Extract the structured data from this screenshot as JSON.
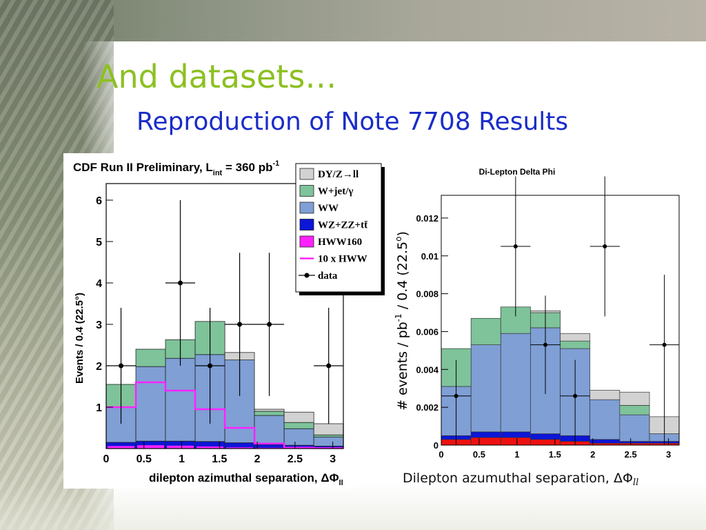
{
  "slide": {
    "title": "And datasets…",
    "subtitle": "Reproduction of Note 7708 Results"
  },
  "colors": {
    "title": "#8cc021",
    "subtitle": "#1a2cc8",
    "dy": "#d2d2d2",
    "wjet": "#7ec39a",
    "ww": "#7f9fd5",
    "wz": "#0c16d8",
    "hww": "#ff22ff",
    "hww_red": "#ee1111"
  },
  "chart_data": [
    {
      "type": "bar",
      "stacked": true,
      "title": "CDF Run II Preliminary, L_int = 360 pb^-1",
      "title_parts": {
        "main": "CDF Run II Preliminary, L",
        "sub": "int",
        "rest": " = 360 pb",
        "sup": "-1"
      },
      "xlabel": "dilepton azimuthal separation, ΔΦ",
      "xlabel_sub": "ll",
      "ylabel": "Events / 0.4 (22.5°)",
      "xlim": [
        0,
        3.14
      ],
      "ylim": [
        0,
        6.4
      ],
      "xticks": [
        "0",
        "0.5",
        "1",
        "1.5",
        "2",
        "2.5",
        "3"
      ],
      "yticks": [
        "1",
        "2",
        "3",
        "4",
        "5",
        "6"
      ],
      "bin_edges": [
        0,
        0.393,
        0.785,
        1.178,
        1.571,
        1.963,
        2.356,
        2.749,
        3.142
      ],
      "series": [
        {
          "name": "WZ+ZZ+tt̄",
          "values": [
            0.15,
            0.18,
            0.18,
            0.17,
            0.14,
            0.1,
            0.08,
            0.06
          ]
        },
        {
          "name": "WW",
          "values": [
            0.85,
            1.8,
            2.0,
            2.1,
            2.0,
            0.7,
            0.4,
            0.22
          ]
        },
        {
          "name": "W+jet/γ",
          "values": [
            0.55,
            0.42,
            0.45,
            0.8,
            0.0,
            0.1,
            0.15,
            0.05
          ]
        },
        {
          "name": "DY/Z→ll",
          "values": [
            0.0,
            0.0,
            0.0,
            0.0,
            0.18,
            0.05,
            0.25,
            0.27
          ]
        }
      ],
      "hww160": {
        "name": "HWW160",
        "values": [
          0.06,
          0.08,
          0.07,
          0.05,
          0.03,
          0.02,
          0.01,
          0.01
        ]
      },
      "hww_x10": {
        "name": "10 x HWW",
        "values": [
          1.0,
          1.6,
          1.4,
          0.95,
          0.5,
          0.12,
          0.02,
          0.01
        ]
      },
      "data": {
        "name": "data",
        "values": [
          2,
          0,
          4,
          2,
          3,
          3,
          0,
          2
        ],
        "err_up": [
          1.4,
          0,
          2.0,
          1.4,
          1.73,
          1.73,
          0,
          1.4
        ],
        "err_down": [
          1.4,
          0,
          2.0,
          1.4,
          1.73,
          1.73,
          0,
          1.4
        ]
      },
      "legend": {
        "placement": "top-right",
        "entries": [
          "DY/Z→ll",
          "W+jet/γ",
          "WW",
          "WZ+ZZ+tt̄",
          "HWW160",
          "10 x HWW",
          "data"
        ]
      }
    },
    {
      "type": "bar",
      "stacked": true,
      "title": "Di-Lepton Delta Phi",
      "xlabel": "Dilepton azumuthal separation, ΔΦ",
      "xlabel_sub": "ll",
      "ylabel": "# events / pb-1 / 0.4 (22.5o)",
      "ylabel_parts": {
        "main": "# events / pb",
        "sup": "-1",
        "rest": " / 0.4 (22.5",
        "sup2": "o",
        "end": ")"
      },
      "xlim": [
        0,
        3.14
      ],
      "ylim": [
        0,
        0.0132
      ],
      "xticks": [
        "0",
        "0.5",
        "1",
        "1.5",
        "2",
        "2.5",
        "3"
      ],
      "yticks": [
        "0",
        "0.002",
        "0.004",
        "0.006",
        "0.008",
        "0.01",
        "0.012"
      ],
      "bin_edges": [
        0,
        0.393,
        0.785,
        1.178,
        1.571,
        1.963,
        2.356,
        2.749,
        3.142
      ],
      "series": [
        {
          "name": "HWW",
          "values": [
            0.0003,
            0.0004,
            0.0004,
            0.0003,
            0.0002,
            0.0001,
            0.0001,
            0.0001
          ]
        },
        {
          "name": "WZ+ZZ+tt̄",
          "values": [
            0.0002,
            0.0003,
            0.0003,
            0.0003,
            0.0003,
            0.0002,
            0.0001,
            0.0001
          ]
        },
        {
          "name": "WW",
          "values": [
            0.0026,
            0.0046,
            0.0052,
            0.0056,
            0.0046,
            0.0021,
            0.0014,
            0.0004
          ]
        },
        {
          "name": "W+jet/γ",
          "values": [
            0.002,
            0.0014,
            0.0014,
            0.0008,
            0.0004,
            0.0,
            0.0005,
            0.0
          ]
        },
        {
          "name": "DY/Z→ll",
          "values": [
            0.0,
            0.0,
            0.0,
            0.0001,
            0.0004,
            0.0005,
            0.0007,
            0.0009
          ]
        }
      ],
      "data": {
        "values": [
          0.0026,
          0.0,
          0.0105,
          0.0053,
          0.0026,
          0.0105,
          0.0,
          0.0053
        ],
        "err_up": [
          0.0019,
          0,
          0.0037,
          0.0026,
          0.0019,
          0.0037,
          0,
          0.0037
        ],
        "err_down": [
          0.0026,
          0,
          0.0037,
          0.0026,
          0.0026,
          0.0037,
          0,
          0.0053
        ]
      }
    }
  ]
}
